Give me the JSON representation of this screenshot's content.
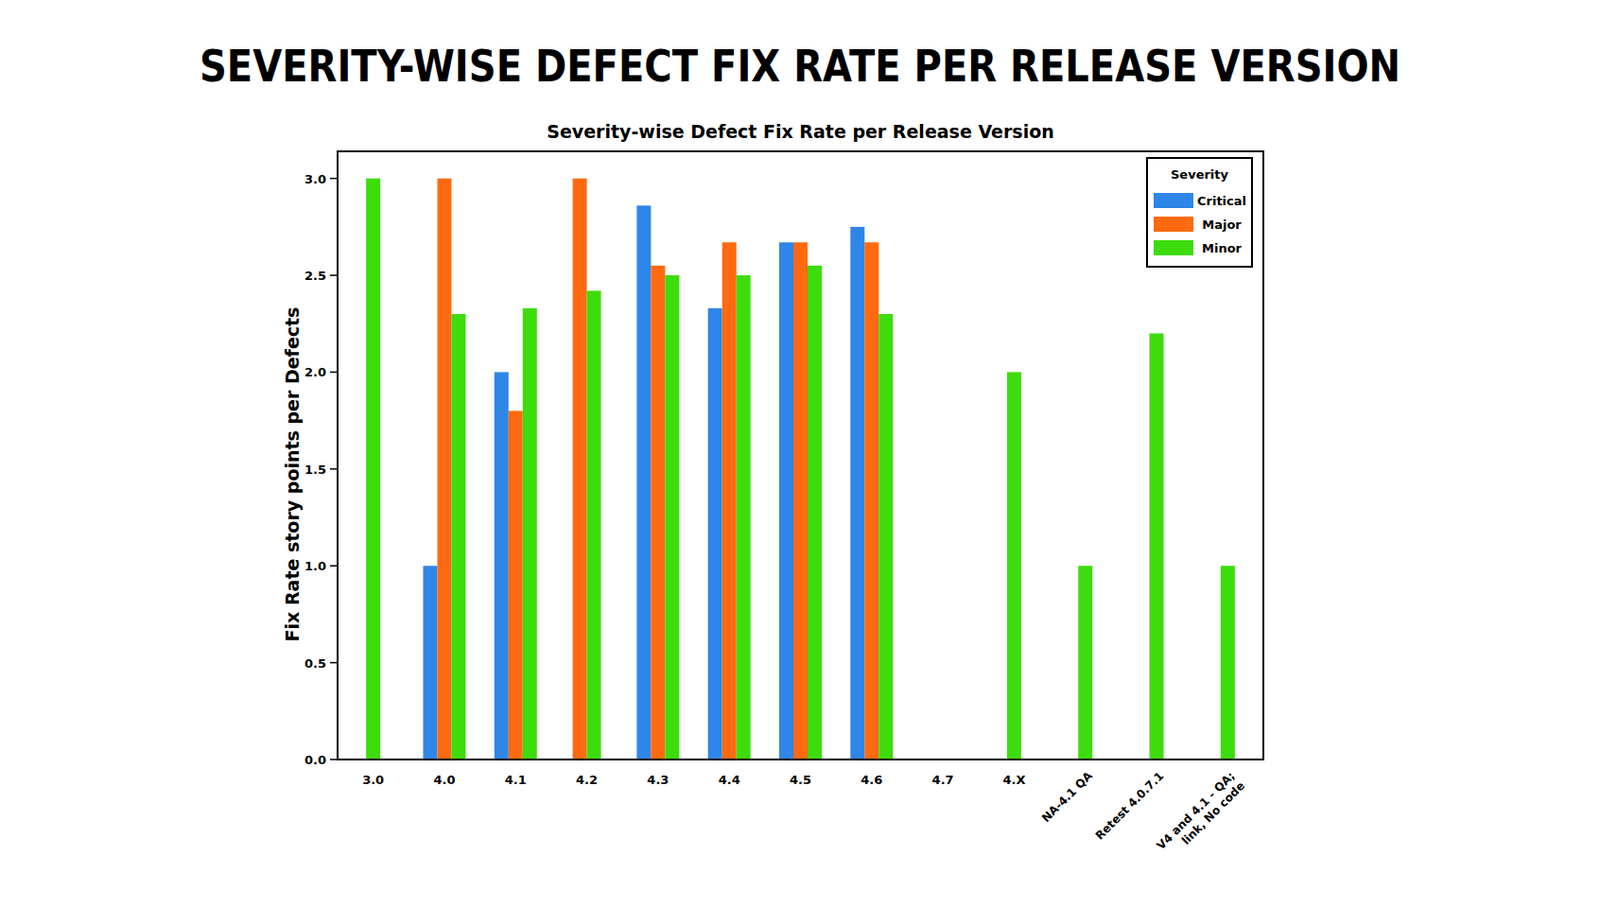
{
  "page_title": "SEVERITY-WISE DEFECT FIX RATE PER RELEASE VERSION",
  "chart_data": {
    "type": "bar",
    "title": "Severity-wise Defect Fix Rate per Release Version",
    "y_label": "Fix Rate story points per Defects",
    "legend_title": "Severity",
    "legend": "upper right",
    "grid": false,
    "categories": [
      "3.0",
      "4.0",
      "4.1",
      "4.2",
      "4.3",
      "4.4",
      "4.5",
      "4.6",
      "4.7",
      "4.X",
      "NA-4.1 QA",
      "Retest 4.0.7.1",
      "V4 and 4.1 - QA; link, No code"
    ],
    "series": [
      {
        "name": "Critical",
        "color": "#2e86e8",
        "values": [
          null,
          1.0,
          2.0,
          null,
          2.86,
          2.33,
          2.67,
          2.75,
          null,
          null,
          null,
          null,
          null
        ]
      },
      {
        "name": "Major",
        "color": "#ff6a10",
        "values": [
          null,
          3.0,
          1.8,
          3.0,
          2.55,
          2.67,
          2.67,
          2.67,
          null,
          null,
          null,
          null,
          null
        ]
      },
      {
        "name": "Minor",
        "color": "#3ddc0c",
        "values": [
          3.0,
          2.3,
          2.33,
          2.42,
          2.5,
          2.5,
          2.55,
          2.3,
          null,
          2.0,
          1.0,
          2.2,
          1.0
        ]
      }
    ],
    "ylim": [
      0,
      3.14
    ],
    "yticks": [
      {
        "value": 0,
        "label": "0.0"
      },
      {
        "value": 0.5,
        "label": "0.5"
      },
      {
        "value": 1,
        "label": "1.0"
      },
      {
        "value": 1.5,
        "label": "1.5"
      },
      {
        "value": 2,
        "label": "2.0"
      },
      {
        "value": 2.5,
        "label": "2.5"
      },
      {
        "value": 3,
        "label": "3.0"
      }
    ]
  }
}
